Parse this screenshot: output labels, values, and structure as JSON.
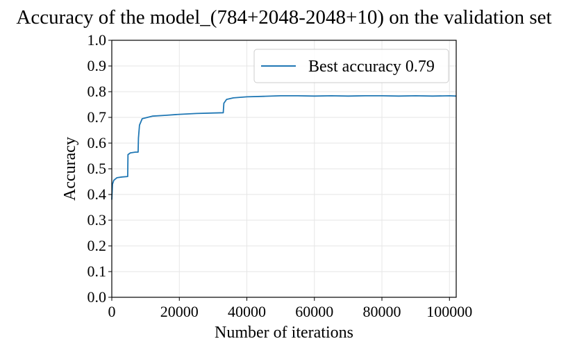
{
  "chart_data": {
    "type": "line",
    "title": "Accuracy of the model_(784+2048-2048+10) on the validation set",
    "xlabel": "Number of iterations",
    "ylabel": "Accuracy",
    "xlim": [
      0,
      102000
    ],
    "ylim": [
      0.0,
      1.0
    ],
    "xticks": [
      0,
      20000,
      40000,
      60000,
      80000,
      100000
    ],
    "yticks": [
      0.0,
      0.1,
      0.2,
      0.3,
      0.4,
      0.5,
      0.6,
      0.7,
      0.8,
      0.9,
      1.0
    ],
    "xtick_labels": [
      "0",
      "20000",
      "40000",
      "60000",
      "80000",
      "100000"
    ],
    "ytick_labels": [
      "0.0",
      "0.1",
      "0.2",
      "0.3",
      "0.4",
      "0.5",
      "0.6",
      "0.7",
      "0.8",
      "0.9",
      "1.0"
    ],
    "grid": true,
    "legend_position": "top-right",
    "series": [
      {
        "name": "Best accuracy 0.79",
        "color": "#1f77b4",
        "x": [
          0,
          200,
          600,
          1500,
          3000,
          4700,
          4800,
          5500,
          7000,
          7800,
          7900,
          8200,
          9000,
          12000,
          16000,
          20000,
          25000,
          30000,
          33000,
          33200,
          34000,
          36000,
          40000,
          45000,
          50000,
          55000,
          60000,
          65000,
          70000,
          75000,
          80000,
          85000,
          90000,
          95000,
          100000,
          102000
        ],
        "values": [
          0.38,
          0.44,
          0.455,
          0.465,
          0.468,
          0.47,
          0.555,
          0.562,
          0.565,
          0.565,
          0.62,
          0.67,
          0.695,
          0.705,
          0.708,
          0.712,
          0.715,
          0.717,
          0.718,
          0.755,
          0.77,
          0.776,
          0.78,
          0.782,
          0.784,
          0.784,
          0.783,
          0.784,
          0.783,
          0.784,
          0.784,
          0.783,
          0.784,
          0.783,
          0.784,
          0.783
        ]
      }
    ]
  }
}
